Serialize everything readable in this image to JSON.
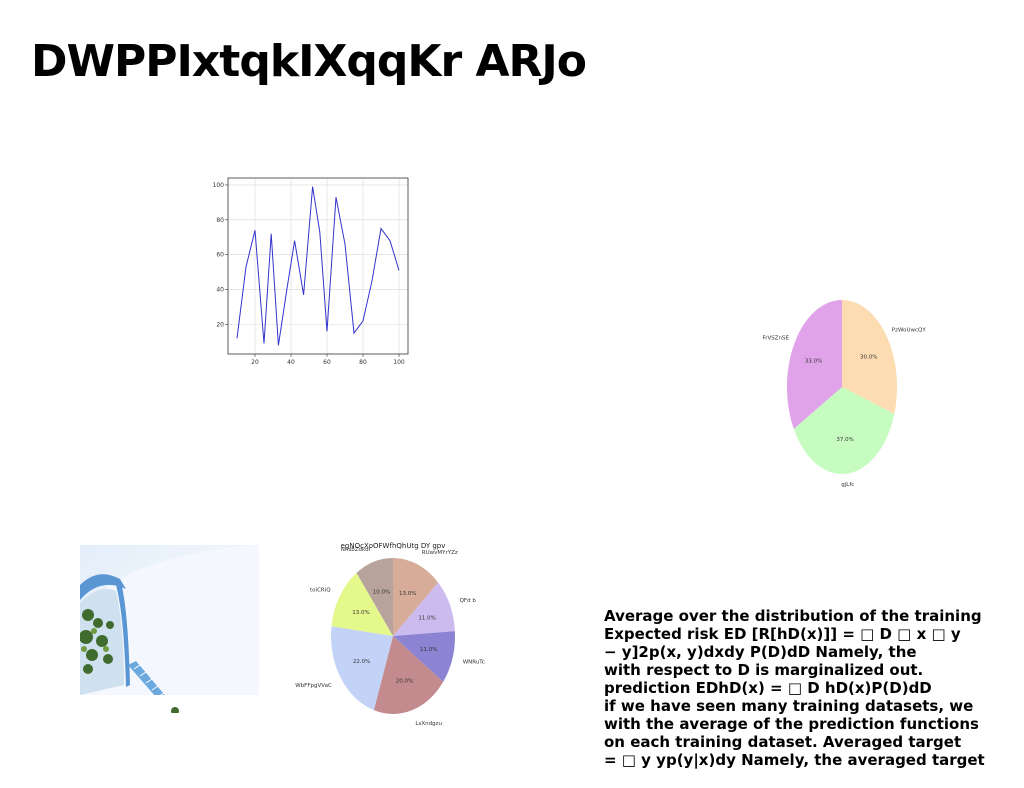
{
  "title": "DWPPIxtqkIXqqKr ARJo",
  "body_lines": [
    "Average over the distribution of the training",
    "Expected risk ED [R[hD(x)]] = □ D □ x □ y",
    "− y]2p(x, y)dxdy P(D)dD Namely, the",
    "with respect to D is marginalized out.",
    "prediction EDhD(x) = □ D hD(x)P(D)dD",
    "if we have seen many training datasets, we",
    "with the average of the prediction functions",
    "on each training dataset. Averaged target",
    "= □ y yp(y|x)dy Namely, the averaged target"
  ],
  "photo": {
    "icon": "greenhouse-photo"
  },
  "chart_data": [
    {
      "type": "line",
      "x": [
        10,
        15,
        20,
        25,
        29,
        33,
        38,
        42,
        47,
        52,
        56,
        60,
        65,
        70,
        75,
        80,
        85,
        90,
        95,
        100
      ],
      "y": [
        12,
        53,
        74,
        9,
        72,
        8,
        42,
        68,
        37,
        99,
        73,
        16,
        93,
        66,
        15,
        22,
        45,
        75,
        68,
        51
      ],
      "xticks": [
        20,
        40,
        60,
        80,
        100
      ],
      "yticks": [
        20,
        40,
        60,
        80,
        100
      ],
      "xlim": [
        5,
        105
      ],
      "ylim": [
        3,
        104
      ],
      "grid": true,
      "color": "#3333cc",
      "title": "",
      "xlabel": "",
      "ylabel": ""
    },
    {
      "type": "pie",
      "title": "",
      "slices": [
        {
          "label": "PzWoUwcQY",
          "pct": "30.0%",
          "value": 30,
          "color": "#fcdcb0"
        },
        {
          "label": "gjLfc",
          "pct": "37.0%",
          "value": 37,
          "color": "#c6fcc0"
        },
        {
          "label": "FrVSZnSE",
          "pct": "33.0%",
          "value": 33,
          "color": "#e0a2e8"
        }
      ]
    },
    {
      "type": "pie",
      "title": "egNOcXoOFWfhQhUtg DY gpv",
      "slices": [
        {
          "label": "RUwvMYrYZz",
          "pct": "13.0%",
          "value": 13,
          "color": "#d7ad9a"
        },
        {
          "label": "QFd b",
          "pct": "11.0%",
          "value": 11,
          "color": "#cbbbee"
        },
        {
          "label": "WNRuTc",
          "pct": "11.0%",
          "value": 11,
          "color": "#8c84d2"
        },
        {
          "label": "LsXndgzu",
          "pct": "20.0%",
          "value": 20,
          "color": "#c38b8e"
        },
        {
          "label": "WbFFpgVVaC",
          "pct": "22.0%",
          "value": 22,
          "color": "#c3d2f7"
        },
        {
          "label": "toiCRiQ",
          "pct": "13.0%",
          "value": 13,
          "color": "#e5f88c"
        },
        {
          "label": "NhsbZdkdf",
          "pct": "10.0%",
          "value": 10,
          "color": "#b7a39c"
        }
      ]
    }
  ]
}
